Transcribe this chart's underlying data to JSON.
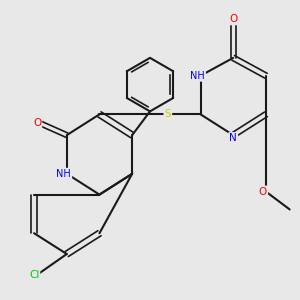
{
  "background_color": "#e8e8e8",
  "bond_color": "#1a1a1a",
  "atom_colors": {
    "Cl": "#00cc00",
    "N": "#0000ff",
    "NH": "#0000ff",
    "O": "#ff0000",
    "S": "#cccc00"
  },
  "title": "",
  "figsize": [
    3.0,
    3.0
  ],
  "dpi": 100
}
